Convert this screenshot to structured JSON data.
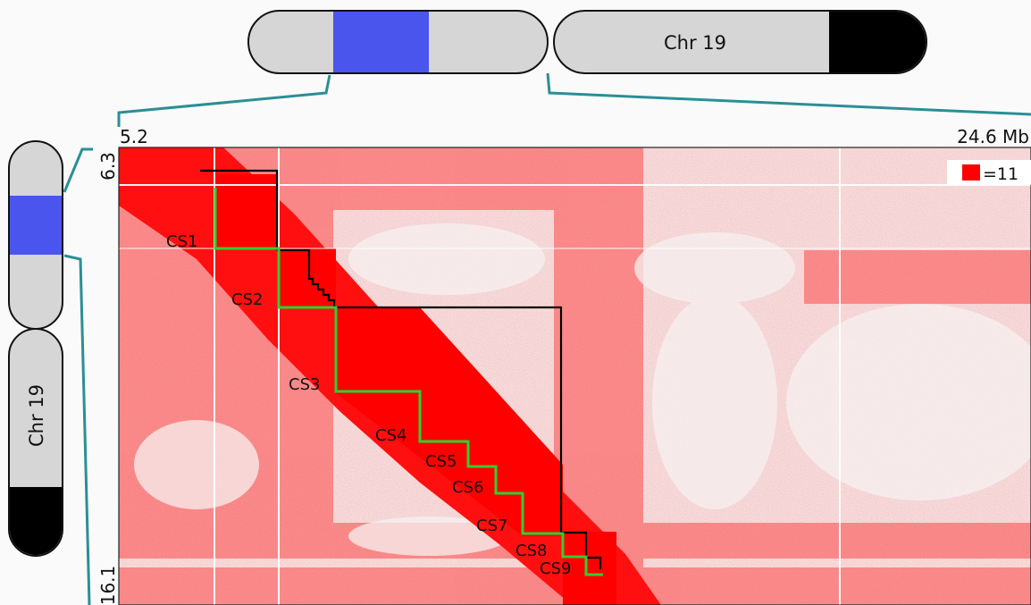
{
  "chromosome_top": {
    "label": "Chr 19"
  },
  "chromosome_left": {
    "label": "Chr 19"
  },
  "axis": {
    "x_start": "5.2",
    "x_end": "24.6 Mb",
    "y_start": "6.3",
    "y_end": "16.1"
  },
  "scale_legend": {
    "label": "=11",
    "color": "#ff0000"
  },
  "colors": {
    "highlight_band": "#4a55ee",
    "chromosome_fill": "#d6d6d6",
    "centromere_black": "#000000",
    "zoom_line": "#2a8f95",
    "heatmap_red": "#ff0000",
    "tad_outline": "#000000",
    "cs_path": "#2dd12d"
  },
  "contact_sets": [
    {
      "label": "CS1"
    },
    {
      "label": "CS2"
    },
    {
      "label": "CS3"
    },
    {
      "label": "CS4"
    },
    {
      "label": "CS5"
    },
    {
      "label": "CS6"
    },
    {
      "label": "CS7"
    },
    {
      "label": "CS8"
    },
    {
      "label": "CS9"
    }
  ]
}
